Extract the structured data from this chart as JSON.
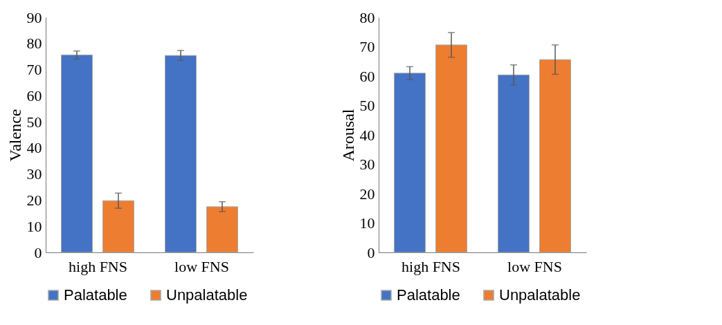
{
  "chart_data": [
    {
      "type": "bar",
      "ylabel": "Valence",
      "categories": [
        "high FNS",
        "low FNS"
      ],
      "ylim": [
        0,
        90
      ],
      "yticks": [
        0,
        10,
        20,
        30,
        40,
        50,
        60,
        70,
        80,
        90
      ],
      "grid": false,
      "legend": "bottom",
      "series": [
        {
          "name": "Palatable",
          "color": "#4472c4",
          "values": [
            75.6,
            75.4
          ],
          "errors": [
            1.5,
            1.9
          ]
        },
        {
          "name": "Unpalatable",
          "color": "#ed7d31",
          "values": [
            19.8,
            17.5
          ],
          "errors": [
            2.9,
            1.9
          ]
        }
      ]
    },
    {
      "type": "bar",
      "ylabel": "Arousal",
      "categories": [
        "high FNS",
        "low FNS"
      ],
      "ylim": [
        0,
        80
      ],
      "yticks": [
        0,
        10,
        20,
        30,
        40,
        50,
        60,
        70,
        80
      ],
      "grid": false,
      "legend": "bottom",
      "series": [
        {
          "name": "Palatable",
          "color": "#4472c4",
          "values": [
            61.0,
            60.4
          ],
          "errors": [
            2.2,
            3.4
          ]
        },
        {
          "name": "Unpalatable",
          "color": "#ed7d31",
          "values": [
            70.6,
            65.6
          ],
          "errors": [
            4.2,
            5.0
          ]
        }
      ]
    }
  ]
}
